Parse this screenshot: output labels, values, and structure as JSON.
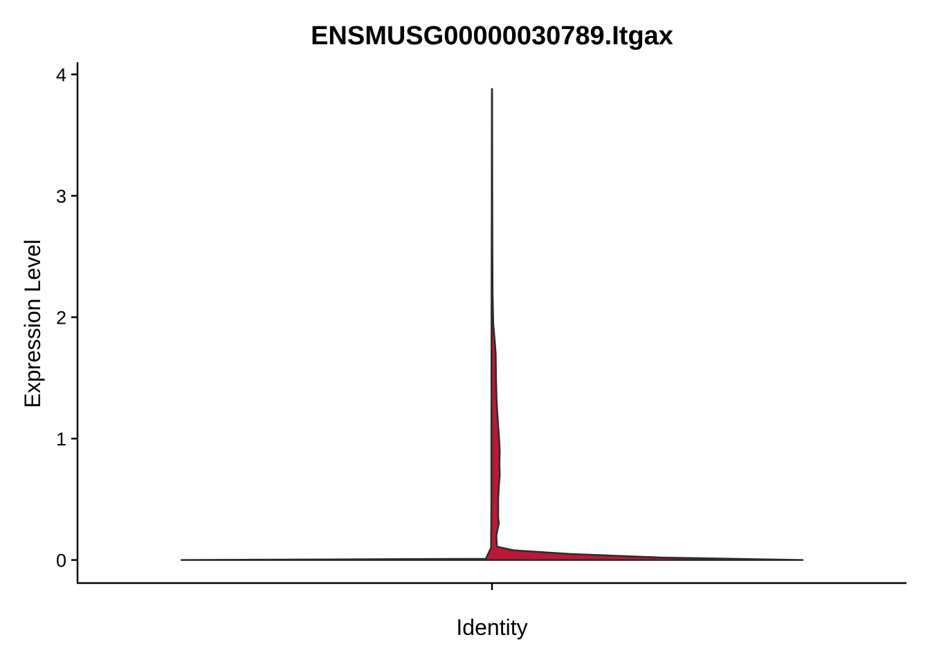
{
  "chart_data": {
    "type": "violin",
    "title": "ENSMUSG00000030789.Itgax",
    "xlabel": "Identity",
    "ylabel": "Expression Level",
    "ylim": [
      -0.19,
      4.1
    ],
    "yticks": [
      0,
      1,
      2,
      3,
      4
    ],
    "ytick_labels": [
      "0",
      "1",
      "2",
      "3",
      "4"
    ],
    "categories": [
      ""
    ],
    "grid": false,
    "legend": "none",
    "fill_color": "#b81a37",
    "outline_color": "#2b2b2b",
    "series": [
      {
        "category": "",
        "max_value": 3.88,
        "density_profile": {
          "note_units": "y in expression level, half_width as fraction of max violin half-width",
          "right": [
            [
              0.0,
              1.0
            ],
            [
              0.02,
              0.55
            ],
            [
              0.05,
              0.25
            ],
            [
              0.08,
              0.07
            ],
            [
              0.11,
              0.016
            ],
            [
              0.2,
              0.014
            ],
            [
              0.3,
              0.022
            ],
            [
              0.35,
              0.02
            ],
            [
              0.5,
              0.02
            ],
            [
              0.6,
              0.022
            ],
            [
              0.7,
              0.025
            ],
            [
              0.8,
              0.024
            ],
            [
              0.9,
              0.025
            ],
            [
              1.0,
              0.023
            ],
            [
              1.1,
              0.02
            ],
            [
              1.3,
              0.015
            ],
            [
              1.5,
              0.013
            ],
            [
              1.7,
              0.012
            ],
            [
              1.8,
              0.009
            ],
            [
              1.95,
              0.004
            ],
            [
              2.2,
              0.002
            ],
            [
              2.7,
              0.0012
            ],
            [
              3.3,
              0.0008
            ],
            [
              3.88,
              0.0004
            ]
          ],
          "left": [
            [
              0.0,
              1.0
            ],
            [
              0.005,
              0.5
            ],
            [
              0.01,
              0.02
            ],
            [
              0.1,
              0.003
            ],
            [
              0.5,
              0.002
            ],
            [
              1.0,
              0.002
            ],
            [
              2.0,
              0.0015
            ],
            [
              3.0,
              0.0008
            ],
            [
              3.88,
              0.0004
            ]
          ]
        }
      }
    ]
  }
}
